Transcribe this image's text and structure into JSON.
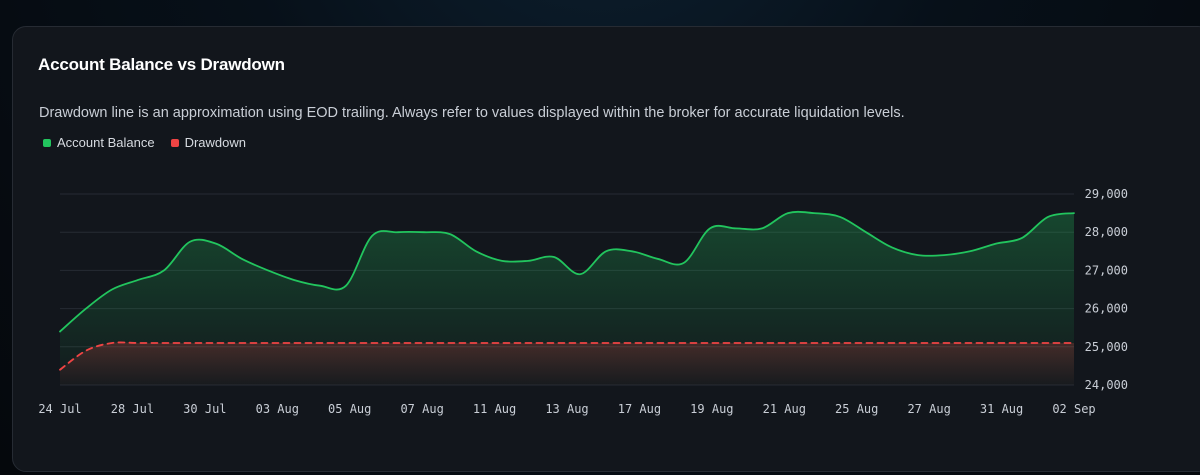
{
  "card": {
    "title": "Account Balance vs Drawdown",
    "subtitle": "Drawdown line is an approximation using EOD trailing. Always refer to values displayed within the broker for accurate liquidation levels."
  },
  "chart_data": {
    "type": "area",
    "title": "Account Balance vs Drawdown",
    "subtitle": "Drawdown line is an approximation using EOD trailing. Always refer to values displayed within the broker for accurate liquidation levels.",
    "xlabel": "",
    "ylabel": "",
    "ylim": [
      24000,
      29000
    ],
    "yticks": [
      24000,
      25000,
      26000,
      27000,
      28000,
      29000
    ],
    "ytick_labels": [
      "24,000",
      "25,000",
      "26,000",
      "27,000",
      "28,000",
      "29,000"
    ],
    "xtick_labels": [
      "24 Jul",
      "28 Jul",
      "30 Jul",
      "03 Aug",
      "05 Aug",
      "07 Aug",
      "11 Aug",
      "13 Aug",
      "17 Aug",
      "19 Aug",
      "21 Aug",
      "25 Aug",
      "27 Aug",
      "31 Aug",
      "02 Sep"
    ],
    "grid": true,
    "legend_position": "top-left",
    "series": [
      {
        "name": "Account Balance",
        "color": "#22c55e",
        "style": "solid",
        "values": [
          25400,
          26000,
          26500,
          26750,
          27000,
          27750,
          27700,
          27300,
          27000,
          26750,
          26600,
          26600,
          27900,
          28000,
          28000,
          27950,
          27500,
          27250,
          27250,
          27350,
          26900,
          27500,
          27500,
          27300,
          27200,
          28100,
          28100,
          28100,
          28500,
          28500,
          28400,
          28000,
          27600,
          27400,
          27400,
          27500,
          27700,
          27850,
          28400,
          28500
        ]
      },
      {
        "name": "Drawdown",
        "color": "#ef4444",
        "style": "dashed",
        "values": [
          24400,
          24900,
          25100,
          25100,
          25100,
          25100,
          25100,
          25100,
          25100,
          25100,
          25100,
          25100,
          25100,
          25100,
          25100,
          25100,
          25100,
          25100,
          25100,
          25100,
          25100,
          25100,
          25100,
          25100,
          25100,
          25100,
          25100,
          25100,
          25100,
          25100,
          25100,
          25100,
          25100,
          25100,
          25100,
          25100,
          25100,
          25100,
          25100,
          25100
        ]
      }
    ]
  }
}
